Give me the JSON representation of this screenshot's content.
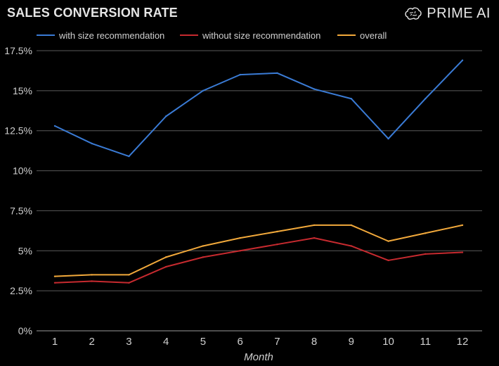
{
  "header": {
    "title": "SALES CONVERSION RATE",
    "brand": "PRIME AI"
  },
  "chart_data": {
    "type": "line",
    "title": "SALES CONVERSION RATE",
    "xlabel": "Month",
    "ylabel": "",
    "categories": [
      "1",
      "2",
      "3",
      "4",
      "5",
      "6",
      "7",
      "8",
      "9",
      "10",
      "11",
      "12"
    ],
    "ylim": [
      0,
      17.5
    ],
    "yticks": [
      0,
      2.5,
      5,
      7.5,
      10,
      12.5,
      15,
      17.5
    ],
    "ytick_labels": [
      "0%",
      "2.5%",
      "5%",
      "7.5%",
      "10%",
      "12.5%",
      "15%",
      "17.5%"
    ],
    "grid": true,
    "legend_position": "top",
    "series": [
      {
        "name": "with size recommendation",
        "color": "#3a7bd5",
        "values": [
          12.8,
          11.7,
          10.9,
          13.4,
          15.0,
          16.0,
          16.1,
          15.1,
          14.5,
          12.0,
          14.5,
          16.9
        ]
      },
      {
        "name": "without size recommendation",
        "color": "#c62a2f",
        "values": [
          3.0,
          3.1,
          3.0,
          4.0,
          4.6,
          5.0,
          5.4,
          5.8,
          5.3,
          4.4,
          4.8,
          4.9
        ]
      },
      {
        "name": "overall",
        "color": "#f2a93b",
        "values": [
          3.4,
          3.5,
          3.5,
          4.6,
          5.3,
          5.8,
          6.2,
          6.6,
          6.6,
          5.6,
          6.1,
          6.6
        ]
      }
    ]
  }
}
